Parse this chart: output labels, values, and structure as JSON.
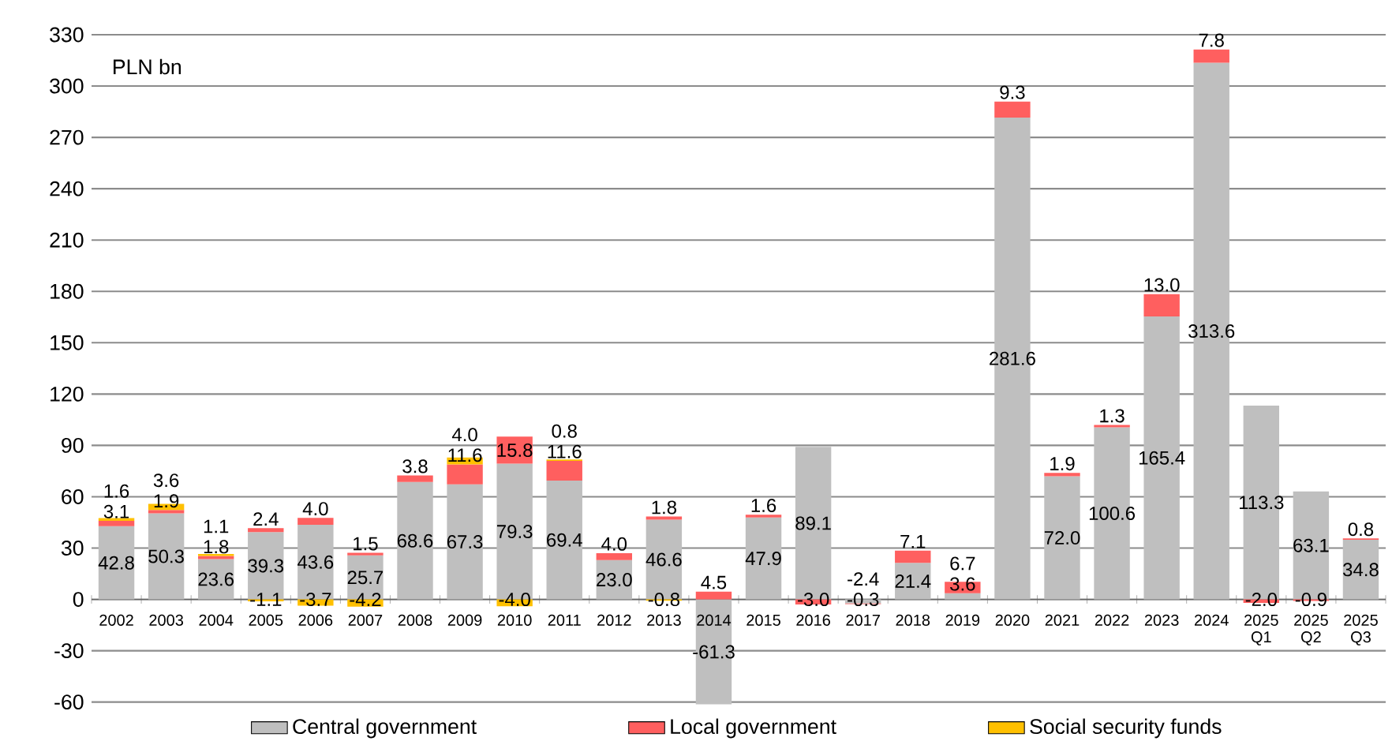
{
  "chart_data": {
    "type": "bar",
    "stacked": true,
    "ylabel": "PLN bn",
    "categories": [
      "2002",
      "2003",
      "2004",
      "2005",
      "2006",
      "2007",
      "2008",
      "2009",
      "2010",
      "2011",
      "2012",
      "2013",
      "2014",
      "2015",
      "2016",
      "2017",
      "2018",
      "2019",
      "2020",
      "2021",
      "2022",
      "2023",
      "2024",
      "2025 Q1",
      "2025 Q2",
      "2025 Q3"
    ],
    "series": [
      {
        "name": "Central government",
        "color": "#bfbfbf",
        "values": [
          42.8,
          50.3,
          23.6,
          39.3,
          43.6,
          25.7,
          68.6,
          67.3,
          79.3,
          69.4,
          23.0,
          46.6,
          -61.3,
          47.9,
          89.1,
          -2.4,
          21.4,
          3.6,
          281.6,
          72.0,
          100.6,
          165.4,
          313.6,
          113.3,
          63.1,
          34.8
        ],
        "value_labels": [
          "42.8",
          "50.3",
          "23.6",
          "39.3",
          "43.6",
          "25.7",
          "68.6",
          "67.3",
          "79.3",
          "69.4",
          "23.0",
          "46.6",
          "-61.3",
          "47.9",
          "89.1",
          "-2.4",
          "21.4",
          "3.6",
          "281.6",
          "72.0",
          "100.6",
          "165.4",
          "313.6",
          "113.3",
          "63.1",
          "34.8"
        ]
      },
      {
        "name": "Local government",
        "color": "#ff5f5f",
        "values": [
          3.1,
          1.9,
          1.8,
          2.4,
          4.0,
          1.5,
          3.8,
          11.6,
          15.8,
          11.6,
          4.0,
          1.8,
          4.5,
          1.6,
          -3.0,
          -0.3,
          7.1,
          6.7,
          9.3,
          1.9,
          1.3,
          13.0,
          7.8,
          -2.0,
          -0.9,
          0.8
        ],
        "value_labels": [
          "3.1",
          "1.9",
          "1.8",
          "2.4",
          "4.0",
          "1.5",
          "3.8",
          "11.6",
          "15.8",
          "11.6",
          "4.0",
          "1.8",
          "4.5",
          "1.6",
          "-3.0",
          "-0.3",
          "7.1",
          "6.7",
          "9.3",
          "1.9",
          "1.3",
          "13.0",
          "7.8",
          "-2.0",
          "-0.9",
          "0.8"
        ]
      },
      {
        "name": "Social security funds",
        "color": "#ffc000",
        "values": [
          1.6,
          3.6,
          1.1,
          -1.1,
          -3.7,
          -4.2,
          null,
          4.0,
          -4.0,
          0.8,
          null,
          -0.8,
          null,
          null,
          null,
          null,
          null,
          null,
          null,
          null,
          null,
          null,
          null,
          null,
          null,
          null
        ],
        "value_labels": [
          "1.6",
          "3.6",
          "1.1",
          "-1.1",
          "-3.7",
          "-4.2",
          null,
          "4.0",
          "-4.0",
          "0.8",
          null,
          "-0.8",
          null,
          null,
          null,
          null,
          null,
          null,
          null,
          null,
          null,
          null,
          null,
          null,
          null,
          null
        ]
      }
    ],
    "ylim": [
      -62,
      330
    ],
    "yticks": [
      -60,
      -30,
      0,
      30,
      60,
      90,
      120,
      150,
      180,
      210,
      240,
      270,
      300,
      330
    ],
    "grid": "y",
    "legend": "bottom"
  }
}
